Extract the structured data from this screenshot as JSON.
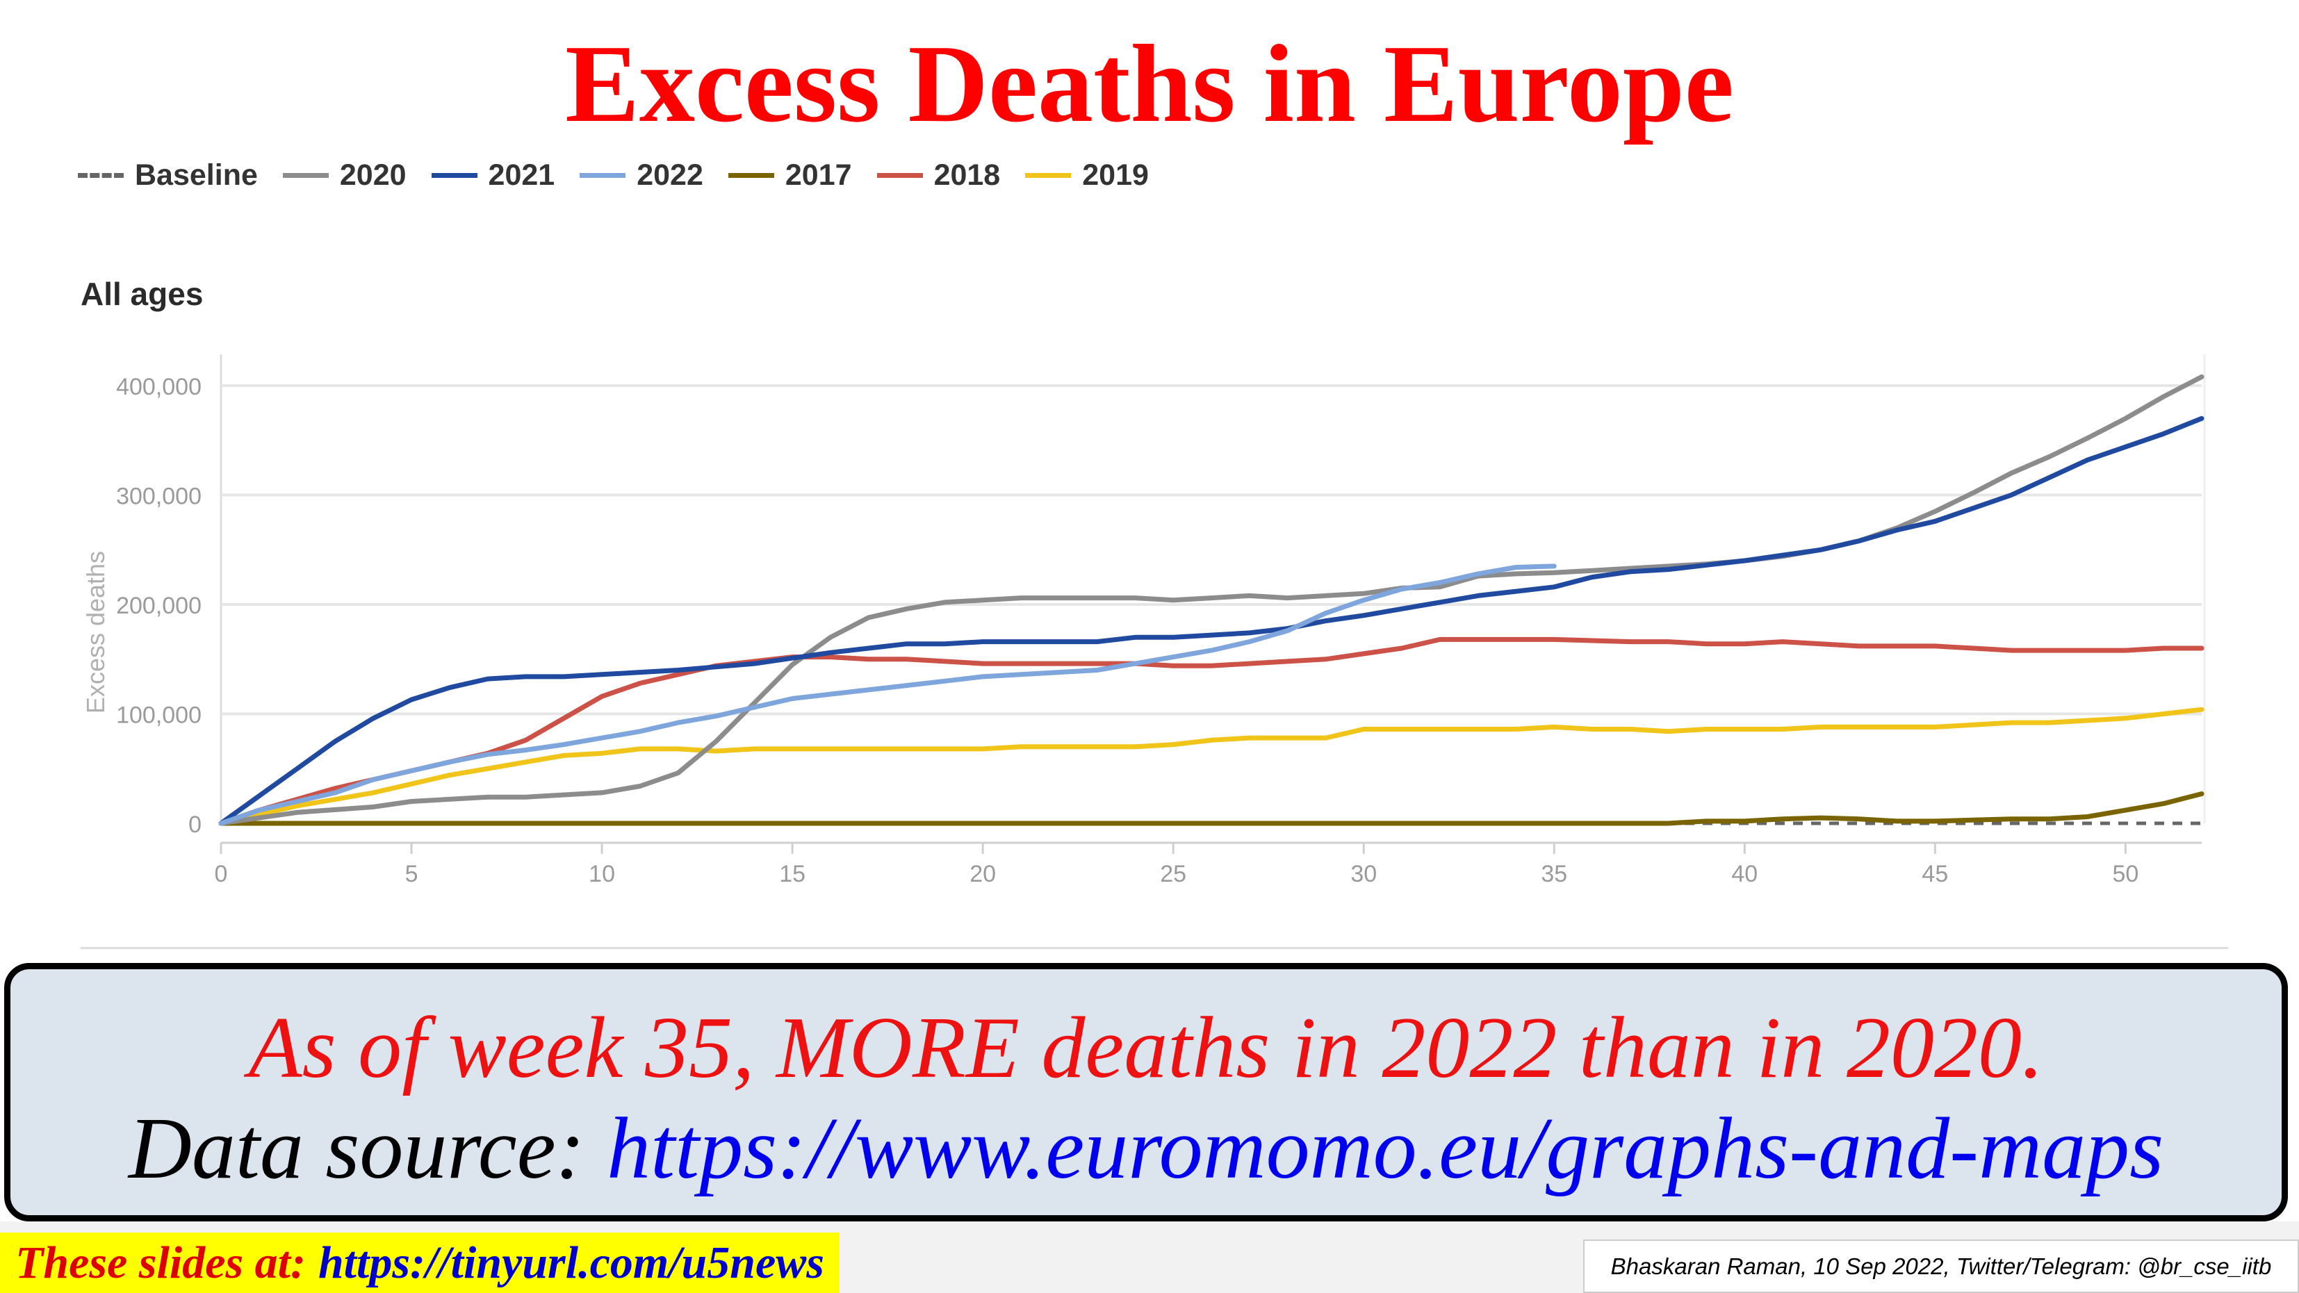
{
  "title": "Excess Deaths in Europe",
  "colors": {
    "title": "#ff0000",
    "Baseline": "#666666",
    "2020": "#8c8c8c",
    "2021": "#1f4aa0",
    "2022": "#7ea6dc",
    "2017": "#7a6400",
    "2018": "#cc5147",
    "2019": "#f0c419"
  },
  "chart_data": {
    "type": "line",
    "title": "",
    "subtitle": "All ages",
    "xlabel": "",
    "ylabel": "Excess deaths",
    "xlim": [
      0,
      52
    ],
    "ylim": [
      0,
      400000
    ],
    "xticks": [
      "0",
      "5",
      "10",
      "15",
      "20",
      "25",
      "30",
      "35",
      "40",
      "45",
      "50"
    ],
    "yticks": [
      "0",
      "100,000",
      "200,000",
      "300,000",
      "400,000"
    ],
    "grid": true,
    "legend_position": "top-left",
    "series": [
      {
        "name": "Baseline",
        "style": "dashed",
        "points": [
          [
            0,
            0
          ],
          [
            52,
            0
          ]
        ]
      },
      {
        "name": "2020",
        "points": [
          [
            0,
            0
          ],
          [
            2,
            10000
          ],
          [
            4,
            15000
          ],
          [
            5,
            20000
          ],
          [
            7,
            24000
          ],
          [
            8,
            24000
          ],
          [
            10,
            28000
          ],
          [
            11,
            34000
          ],
          [
            12,
            46000
          ],
          [
            13,
            75000
          ],
          [
            14,
            110000
          ],
          [
            15,
            145000
          ],
          [
            16,
            170000
          ],
          [
            17,
            188000
          ],
          [
            18,
            196000
          ],
          [
            19,
            202000
          ],
          [
            20,
            204000
          ],
          [
            21,
            206000
          ],
          [
            22,
            206000
          ],
          [
            23,
            206000
          ],
          [
            24,
            206000
          ],
          [
            25,
            204000
          ],
          [
            26,
            206000
          ],
          [
            27,
            208000
          ],
          [
            28,
            206000
          ],
          [
            29,
            208000
          ],
          [
            30,
            210000
          ],
          [
            31,
            215000
          ],
          [
            32,
            216000
          ],
          [
            33,
            226000
          ],
          [
            34,
            228000
          ],
          [
            35,
            229000
          ],
          [
            36,
            231000
          ],
          [
            37,
            233000
          ],
          [
            38,
            235000
          ],
          [
            39,
            237000
          ],
          [
            40,
            240000
          ],
          [
            41,
            244000
          ],
          [
            42,
            250000
          ],
          [
            43,
            258000
          ],
          [
            44,
            270000
          ],
          [
            45,
            285000
          ],
          [
            46,
            302000
          ],
          [
            47,
            320000
          ],
          [
            48,
            335000
          ],
          [
            49,
            352000
          ],
          [
            50,
            370000
          ],
          [
            51,
            390000
          ],
          [
            52,
            408000
          ]
        ]
      },
      {
        "name": "2021",
        "points": [
          [
            0,
            0
          ],
          [
            1,
            25000
          ],
          [
            2,
            50000
          ],
          [
            3,
            75000
          ],
          [
            4,
            96000
          ],
          [
            5,
            113000
          ],
          [
            6,
            124000
          ],
          [
            7,
            132000
          ],
          [
            8,
            134000
          ],
          [
            9,
            134000
          ],
          [
            10,
            136000
          ],
          [
            11,
            138000
          ],
          [
            12,
            140000
          ],
          [
            13,
            143000
          ],
          [
            14,
            146000
          ],
          [
            15,
            151000
          ],
          [
            16,
            156000
          ],
          [
            17,
            160000
          ],
          [
            18,
            164000
          ],
          [
            19,
            164000
          ],
          [
            20,
            166000
          ],
          [
            21,
            166000
          ],
          [
            22,
            166000
          ],
          [
            23,
            166000
          ],
          [
            24,
            170000
          ],
          [
            25,
            170000
          ],
          [
            26,
            172000
          ],
          [
            27,
            174000
          ],
          [
            28,
            178000
          ],
          [
            29,
            185000
          ],
          [
            30,
            190000
          ],
          [
            31,
            196000
          ],
          [
            32,
            202000
          ],
          [
            33,
            208000
          ],
          [
            34,
            212000
          ],
          [
            35,
            216000
          ],
          [
            36,
            225000
          ],
          [
            37,
            230000
          ],
          [
            38,
            232000
          ],
          [
            39,
            236000
          ],
          [
            40,
            240000
          ],
          [
            41,
            245000
          ],
          [
            42,
            250000
          ],
          [
            43,
            258000
          ],
          [
            44,
            268000
          ],
          [
            45,
            276000
          ],
          [
            46,
            288000
          ],
          [
            47,
            300000
          ],
          [
            48,
            316000
          ],
          [
            49,
            332000
          ],
          [
            50,
            344000
          ],
          [
            51,
            356000
          ],
          [
            52,
            370000
          ]
        ]
      },
      {
        "name": "2022",
        "points": [
          [
            0,
            0
          ],
          [
            1,
            12000
          ],
          [
            2,
            20000
          ],
          [
            3,
            28000
          ],
          [
            4,
            40000
          ],
          [
            5,
            48000
          ],
          [
            6,
            56000
          ],
          [
            7,
            63000
          ],
          [
            8,
            67000
          ],
          [
            9,
            72000
          ],
          [
            10,
            78000
          ],
          [
            11,
            84000
          ],
          [
            12,
            92000
          ],
          [
            13,
            98000
          ],
          [
            14,
            106000
          ],
          [
            15,
            114000
          ],
          [
            16,
            118000
          ],
          [
            17,
            122000
          ],
          [
            18,
            126000
          ],
          [
            19,
            130000
          ],
          [
            20,
            134000
          ],
          [
            21,
            136000
          ],
          [
            22,
            138000
          ],
          [
            23,
            140000
          ],
          [
            24,
            146000
          ],
          [
            25,
            152000
          ],
          [
            26,
            158000
          ],
          [
            27,
            166000
          ],
          [
            28,
            176000
          ],
          [
            29,
            192000
          ],
          [
            30,
            204000
          ],
          [
            31,
            214000
          ],
          [
            32,
            220000
          ],
          [
            33,
            228000
          ],
          [
            34,
            234000
          ],
          [
            35,
            235000
          ]
        ]
      },
      {
        "name": "2017",
        "points": [
          [
            0,
            0
          ],
          [
            37,
            0
          ],
          [
            38,
            0
          ],
          [
            39,
            2000
          ],
          [
            40,
            2000
          ],
          [
            41,
            4000
          ],
          [
            42,
            5000
          ],
          [
            43,
            4000
          ],
          [
            44,
            2000
          ],
          [
            45,
            2000
          ],
          [
            46,
            3000
          ],
          [
            47,
            4000
          ],
          [
            48,
            4000
          ],
          [
            49,
            6000
          ],
          [
            50,
            12000
          ],
          [
            51,
            18000
          ],
          [
            52,
            27000
          ]
        ]
      },
      {
        "name": "2018",
        "points": [
          [
            0,
            0
          ],
          [
            1,
            12000
          ],
          [
            2,
            22000
          ],
          [
            3,
            32000
          ],
          [
            4,
            40000
          ],
          [
            5,
            48000
          ],
          [
            6,
            56000
          ],
          [
            7,
            64000
          ],
          [
            8,
            76000
          ],
          [
            9,
            96000
          ],
          [
            10,
            116000
          ],
          [
            11,
            128000
          ],
          [
            12,
            136000
          ],
          [
            13,
            144000
          ],
          [
            14,
            148000
          ],
          [
            15,
            152000
          ],
          [
            16,
            152000
          ],
          [
            17,
            150000
          ],
          [
            18,
            150000
          ],
          [
            19,
            148000
          ],
          [
            20,
            146000
          ],
          [
            21,
            146000
          ],
          [
            22,
            146000
          ],
          [
            23,
            146000
          ],
          [
            24,
            146000
          ],
          [
            25,
            144000
          ],
          [
            26,
            144000
          ],
          [
            27,
            146000
          ],
          [
            28,
            148000
          ],
          [
            29,
            150000
          ],
          [
            30,
            155000
          ],
          [
            31,
            160000
          ],
          [
            32,
            168000
          ],
          [
            33,
            168000
          ],
          [
            34,
            168000
          ],
          [
            35,
            168000
          ],
          [
            36,
            167000
          ],
          [
            37,
            166000
          ],
          [
            38,
            166000
          ],
          [
            39,
            164000
          ],
          [
            40,
            164000
          ],
          [
            41,
            166000
          ],
          [
            42,
            164000
          ],
          [
            43,
            162000
          ],
          [
            44,
            162000
          ],
          [
            45,
            162000
          ],
          [
            46,
            160000
          ],
          [
            47,
            158000
          ],
          [
            48,
            158000
          ],
          [
            49,
            158000
          ],
          [
            50,
            158000
          ],
          [
            51,
            160000
          ],
          [
            52,
            160000
          ]
        ]
      },
      {
        "name": "2019",
        "points": [
          [
            0,
            0
          ],
          [
            1,
            8000
          ],
          [
            2,
            16000
          ],
          [
            3,
            22000
          ],
          [
            4,
            28000
          ],
          [
            5,
            36000
          ],
          [
            6,
            44000
          ],
          [
            7,
            50000
          ],
          [
            8,
            56000
          ],
          [
            9,
            62000
          ],
          [
            10,
            64000
          ],
          [
            11,
            68000
          ],
          [
            12,
            68000
          ],
          [
            13,
            66000
          ],
          [
            14,
            68000
          ],
          [
            15,
            68000
          ],
          [
            16,
            68000
          ],
          [
            17,
            68000
          ],
          [
            18,
            68000
          ],
          [
            19,
            68000
          ],
          [
            20,
            68000
          ],
          [
            21,
            70000
          ],
          [
            22,
            70000
          ],
          [
            23,
            70000
          ],
          [
            24,
            70000
          ],
          [
            25,
            72000
          ],
          [
            26,
            76000
          ],
          [
            27,
            78000
          ],
          [
            28,
            78000
          ],
          [
            29,
            78000
          ],
          [
            30,
            86000
          ],
          [
            31,
            86000
          ],
          [
            32,
            86000
          ],
          [
            33,
            86000
          ],
          [
            34,
            86000
          ],
          [
            35,
            88000
          ],
          [
            36,
            86000
          ],
          [
            37,
            86000
          ],
          [
            38,
            84000
          ],
          [
            39,
            86000
          ],
          [
            40,
            86000
          ],
          [
            41,
            86000
          ],
          [
            42,
            88000
          ],
          [
            43,
            88000
          ],
          [
            44,
            88000
          ],
          [
            45,
            88000
          ],
          [
            46,
            90000
          ],
          [
            47,
            92000
          ],
          [
            48,
            92000
          ],
          [
            49,
            94000
          ],
          [
            50,
            96000
          ],
          [
            51,
            100000
          ],
          [
            52,
            104000
          ]
        ]
      }
    ]
  },
  "callout": {
    "line1": "As of week 35, MORE deaths in 2022 than in 2020.",
    "line2_label": "Data source:",
    "line2_url": "https://www.euromomo.eu/graphs-and-maps"
  },
  "footer": {
    "slides_label": "These slides at:",
    "slides_url": "https://tinyurl.com/u5news",
    "credit": "Bhaskaran Raman, 10 Sep 2022, Twitter/Telegram: @br_cse_iitb"
  }
}
